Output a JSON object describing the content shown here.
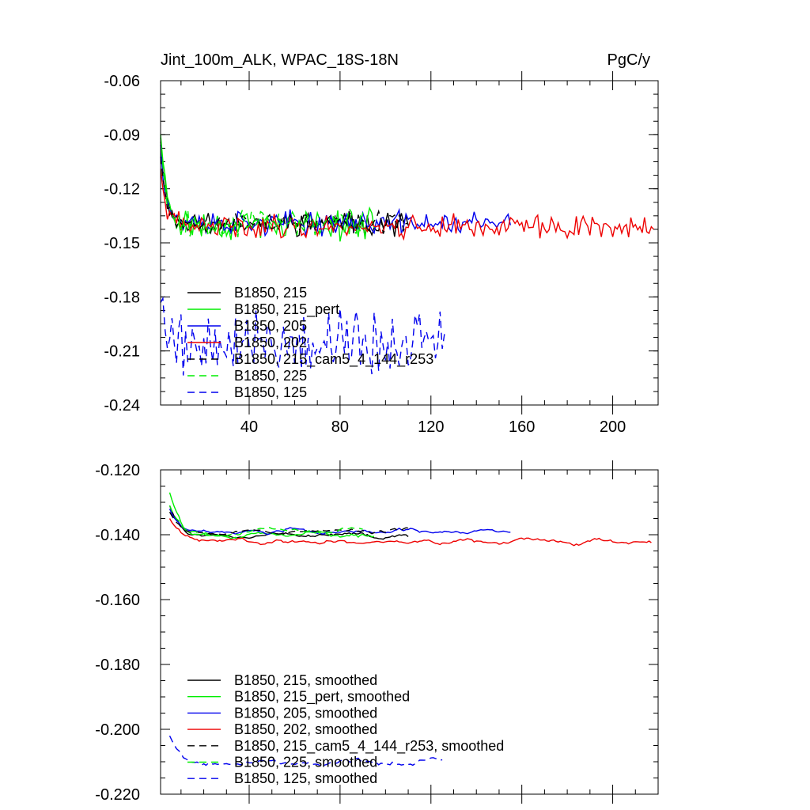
{
  "chart_data": [
    {
      "type": "line",
      "title": "Jint_100m_ALK, WPAC_18S-18N",
      "units": "PgC/y",
      "xlabel": "",
      "ylabel": "",
      "xlim": [
        1,
        220
      ],
      "ylim": [
        -0.24,
        -0.06
      ],
      "xticks": [
        40,
        80,
        120,
        160,
        200
      ],
      "xtick_labels": [
        "40",
        "80",
        "120",
        "160",
        "200"
      ],
      "yticks": [
        -0.06,
        -0.09,
        -0.12,
        -0.15,
        -0.18,
        -0.21,
        -0.24
      ],
      "ytick_labels": [
        "-0.06",
        "-0.09",
        "-0.12",
        "-0.15",
        "-0.18",
        "-0.21",
        "-0.24"
      ],
      "legend_position": "lower-left",
      "series": [
        {
          "name": "B1850, 215",
          "color": "#000000",
          "dash": "solid",
          "start": 1,
          "length": 110,
          "first": -0.092,
          "mean": -0.139,
          "amp": 0.008,
          "seed": 11
        },
        {
          "name": "B1850, 215_pert",
          "color": "#00ee00",
          "dash": "solid",
          "start": 1,
          "length": 95,
          "first": -0.088,
          "mean": -0.14,
          "amp": 0.01,
          "seed": 23
        },
        {
          "name": "B1850, 205",
          "color": "#0000ee",
          "dash": "solid",
          "start": 1,
          "length": 155,
          "first": -0.095,
          "mean": -0.139,
          "amp": 0.008,
          "seed": 37
        },
        {
          "name": "B1850, 202",
          "color": "#ee0000",
          "dash": "solid",
          "start": 1,
          "length": 218,
          "first": -0.11,
          "mean": -0.141,
          "amp": 0.008,
          "seed": 41
        },
        {
          "name": "B1850, 215_cam5_4_144_r253",
          "color": "#000000",
          "dash": "dashed",
          "start": 1,
          "length": 110,
          "first": -0.1,
          "mean": -0.139,
          "amp": 0.007,
          "seed": 53
        },
        {
          "name": "B1850, 225",
          "color": "#00ee00",
          "dash": "dashed",
          "start": 1,
          "length": 90,
          "first": -0.09,
          "mean": -0.139,
          "amp": 0.009,
          "seed": 67
        },
        {
          "name": "B1850, 125",
          "color": "#0000ee",
          "dash": "dashed",
          "start": 1,
          "length": 126,
          "first": -0.18,
          "mean": -0.205,
          "amp": 0.022,
          "seed": 79
        }
      ]
    },
    {
      "type": "line",
      "title": "",
      "xlabel": "",
      "ylabel": "",
      "xlim": [
        1,
        220
      ],
      "ylim": [
        -0.22,
        -0.12
      ],
      "xticks": [
        40,
        80,
        120,
        160,
        200
      ],
      "yticks": [
        -0.12,
        -0.14,
        -0.16,
        -0.18,
        -0.2,
        -0.22
      ],
      "ytick_labels": [
        "-0.120",
        "-0.140",
        "-0.160",
        "-0.180",
        "-0.200",
        "-0.220"
      ],
      "legend_position": "lower-left",
      "series": [
        {
          "name": "B1850, 215, smoothed",
          "color": "#000000",
          "dash": "solid",
          "start": 5,
          "length": 106,
          "first": -0.131,
          "mean": -0.14,
          "amp": 0.004,
          "seed": 11
        },
        {
          "name": "B1850, 215_pert, smoothed",
          "color": "#00ee00",
          "dash": "solid",
          "start": 5,
          "length": 91,
          "first": -0.127,
          "mean": -0.14,
          "amp": 0.004,
          "seed": 23
        },
        {
          "name": "B1850, 205, smoothed",
          "color": "#0000ee",
          "dash": "solid",
          "start": 5,
          "length": 151,
          "first": -0.132,
          "mean": -0.139,
          "amp": 0.004,
          "seed": 37
        },
        {
          "name": "B1850, 202, smoothed",
          "color": "#ee0000",
          "dash": "solid",
          "start": 5,
          "length": 213,
          "first": -0.135,
          "mean": -0.142,
          "amp": 0.004,
          "seed": 41
        },
        {
          "name": "B1850, 215_cam5_4_144_r253, smoothed",
          "color": "#000000",
          "dash": "dashed",
          "start": 5,
          "length": 106,
          "first": -0.133,
          "mean": -0.139,
          "amp": 0.003,
          "seed": 53
        },
        {
          "name": "B1850, 225, smoothed",
          "color": "#00ee00",
          "dash": "dashed",
          "start": 5,
          "length": 86,
          "first": -0.131,
          "mean": -0.139,
          "amp": 0.004,
          "seed": 67
        },
        {
          "name": "B1850, 125, smoothed",
          "color": "#0000ee",
          "dash": "dashed",
          "start": 5,
          "length": 121,
          "first": -0.202,
          "mean": -0.21,
          "amp": 0.005,
          "seed": 79
        }
      ]
    }
  ]
}
